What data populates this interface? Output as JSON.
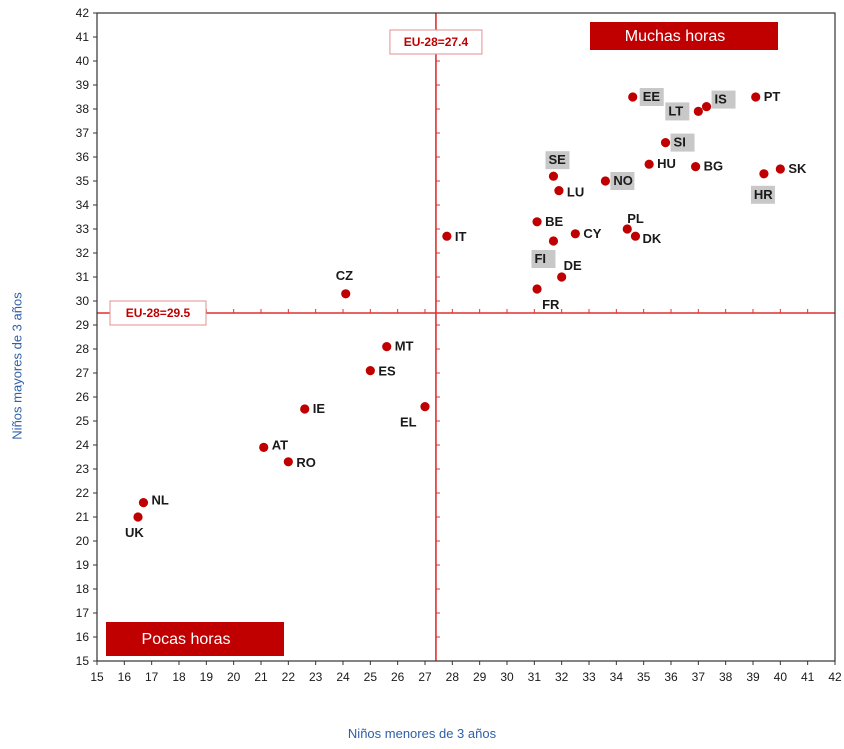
{
  "chart_data": {
    "type": "scatter",
    "title": "",
    "xlabel": "Niños menores de 3 años",
    "ylabel": "Niños mayores de 3 años",
    "xlim": [
      15,
      42
    ],
    "ylim": [
      15,
      42
    ],
    "xticks": [
      15,
      16,
      17,
      18,
      19,
      20,
      21,
      22,
      23,
      24,
      25,
      26,
      27,
      28,
      29,
      30,
      31,
      32,
      33,
      34,
      35,
      36,
      37,
      38,
      39,
      40,
      41,
      42
    ],
    "yticks": [
      15,
      16,
      17,
      18,
      19,
      20,
      21,
      22,
      23,
      24,
      25,
      26,
      27,
      28,
      29,
      30,
      31,
      32,
      33,
      34,
      35,
      36,
      37,
      38,
      39,
      40,
      41,
      42
    ],
    "grid": false,
    "colors": {
      "points": "#c00000",
      "reference": "#e03030",
      "quadrant_box": "#c00000",
      "highlight": "#c8c8c8",
      "axis_title": "#2e5fa8"
    },
    "reference_lines": [
      {
        "axis": "x",
        "value": 27.4,
        "label": "EU-28=27.4"
      },
      {
        "axis": "y",
        "value": 29.5,
        "label": "EU-28=29.5"
      }
    ],
    "quadrant_labels": [
      "Muchas horas",
      "Pocas horas"
    ],
    "points": [
      {
        "label": "EE",
        "x": 34.6,
        "y": 38.5,
        "highlight": true
      },
      {
        "label": "LT",
        "x": 37.0,
        "y": 37.9,
        "highlight": true
      },
      {
        "label": "IS",
        "x": 37.3,
        "y": 38.1,
        "highlight": true
      },
      {
        "label": "PT",
        "x": 39.1,
        "y": 38.5,
        "highlight": false
      },
      {
        "label": "SI",
        "x": 35.8,
        "y": 36.6,
        "highlight": true
      },
      {
        "label": "HU",
        "x": 35.2,
        "y": 35.7,
        "highlight": false
      },
      {
        "label": "BG",
        "x": 36.9,
        "y": 35.6,
        "highlight": false
      },
      {
        "label": "SK",
        "x": 40.0,
        "y": 35.5,
        "highlight": false
      },
      {
        "label": "HR",
        "x": 39.4,
        "y": 35.3,
        "highlight": true
      },
      {
        "label": "SE",
        "x": 31.7,
        "y": 35.2,
        "highlight": true
      },
      {
        "label": "NO",
        "x": 33.6,
        "y": 35.0,
        "highlight": true
      },
      {
        "label": "LU",
        "x": 31.9,
        "y": 34.6,
        "highlight": false
      },
      {
        "label": "BE",
        "x": 31.1,
        "y": 33.3,
        "highlight": false
      },
      {
        "label": "PL",
        "x": 34.4,
        "y": 33.0,
        "highlight": false
      },
      {
        "label": "DK",
        "x": 34.7,
        "y": 32.7,
        "highlight": false
      },
      {
        "label": "CY",
        "x": 32.5,
        "y": 32.8,
        "highlight": false
      },
      {
        "label": "FI",
        "x": 31.7,
        "y": 32.5,
        "highlight": true
      },
      {
        "label": "IT",
        "x": 27.8,
        "y": 32.7,
        "highlight": false
      },
      {
        "label": "DE",
        "x": 32.0,
        "y": 31.0,
        "highlight": false
      },
      {
        "label": "FR",
        "x": 31.1,
        "y": 30.5,
        "highlight": false
      },
      {
        "label": "CZ",
        "x": 24.1,
        "y": 30.3,
        "highlight": false
      },
      {
        "label": "MT",
        "x": 25.6,
        "y": 28.1,
        "highlight": false
      },
      {
        "label": "ES",
        "x": 25.0,
        "y": 27.1,
        "highlight": false
      },
      {
        "label": "IE",
        "x": 22.6,
        "y": 25.5,
        "highlight": false
      },
      {
        "label": "EL",
        "x": 27.0,
        "y": 25.6,
        "highlight": false
      },
      {
        "label": "AT",
        "x": 21.1,
        "y": 23.9,
        "highlight": false
      },
      {
        "label": "RO",
        "x": 22.0,
        "y": 23.3,
        "highlight": false
      },
      {
        "label": "NL",
        "x": 16.7,
        "y": 21.6,
        "highlight": false
      },
      {
        "label": "UK",
        "x": 16.5,
        "y": 21.0,
        "highlight": false
      }
    ]
  }
}
